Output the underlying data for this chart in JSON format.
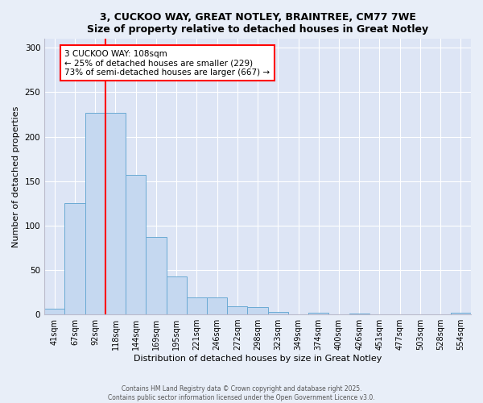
{
  "title_line1": "3, CUCKOO WAY, GREAT NOTLEY, BRAINTREE, CM77 7WE",
  "title_line2": "Size of property relative to detached houses in Great Notley",
  "xlabel": "Distribution of detached houses by size in Great Notley",
  "ylabel": "Number of detached properties",
  "categories": [
    "41sqm",
    "67sqm",
    "92sqm",
    "118sqm",
    "144sqm",
    "169sqm",
    "195sqm",
    "221sqm",
    "246sqm",
    "272sqm",
    "298sqm",
    "323sqm",
    "349sqm",
    "374sqm",
    "400sqm",
    "426sqm",
    "451sqm",
    "477sqm",
    "503sqm",
    "528sqm",
    "554sqm"
  ],
  "values": [
    6,
    125,
    227,
    227,
    157,
    87,
    43,
    19,
    19,
    9,
    8,
    3,
    0,
    2,
    0,
    1,
    0,
    0,
    0,
    0,
    2
  ],
  "bar_color": "#c5d8f0",
  "bar_edge_color": "#6aaad4",
  "vline_x": 2.5,
  "vline_color": "red",
  "annotation_text": "3 CUCKOO WAY: 108sqm\n← 25% of detached houses are smaller (229)\n73% of semi-detached houses are larger (667) →",
  "annotation_box_color": "white",
  "annotation_box_edge": "red",
  "ylim": [
    0,
    310
  ],
  "yticks": [
    0,
    50,
    100,
    150,
    200,
    250,
    300
  ],
  "footer_line1": "Contains HM Land Registry data © Crown copyright and database right 2025.",
  "footer_line2": "Contains public sector information licensed under the Open Government Licence v3.0.",
  "background_color": "#e8eef8",
  "plot_background": "#dde5f5",
  "title_fontsize": 9,
  "axis_label_fontsize": 8,
  "tick_fontsize": 7,
  "annotation_fontsize": 7.5,
  "footer_fontsize": 5.5
}
